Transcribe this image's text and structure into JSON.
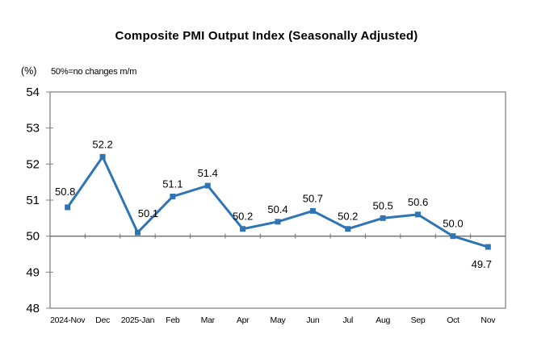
{
  "title": "Composite PMI Output Index (Seasonally Adjusted)",
  "y_axis_unit": "(%)",
  "reference_note": "50%=no changes m/m",
  "chart_data": {
    "type": "line",
    "title": "Composite PMI Output Index (Seasonally Adjusted)",
    "categories": [
      "2024-Nov",
      "Dec",
      "2025-Jan",
      "Feb",
      "Mar",
      "Apr",
      "May",
      "Jun",
      "Jul",
      "Aug",
      "Sep",
      "Oct",
      "Nov"
    ],
    "series": [
      {
        "name": "Composite PMI Output Index",
        "values": [
          50.8,
          52.2,
          50.1,
          51.1,
          51.4,
          50.2,
          50.4,
          50.7,
          50.2,
          50.5,
          50.6,
          50.0,
          49.7
        ]
      }
    ],
    "ylabel": "(%)",
    "ylim": [
      48,
      54
    ],
    "y_ticks": [
      48,
      49,
      50,
      51,
      52,
      53,
      54
    ],
    "reference_line": 50,
    "grid": false,
    "legend_position": "none",
    "data_labels": true,
    "data_label_decimals": 1,
    "colors": {
      "line": "#2F75B5",
      "marker": "#2F75B5",
      "plot_border": "#828282",
      "reference_line": "#6E6E6E",
      "text": "#000000"
    }
  }
}
